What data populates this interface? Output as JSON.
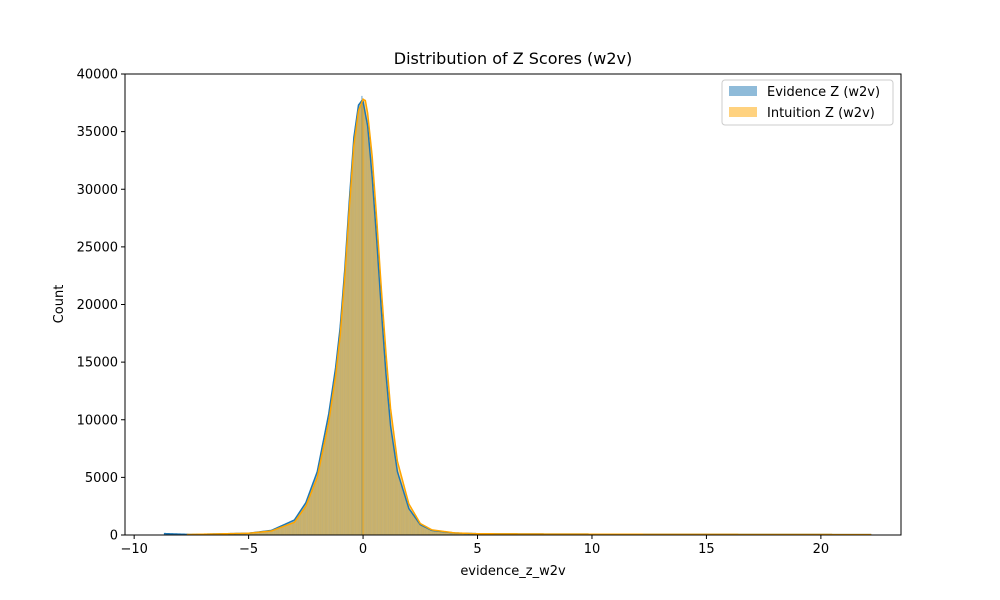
{
  "chart_data": {
    "type": "histogram",
    "title": "Distribution of Z Scores (w2v)",
    "xlabel": "evidence_z_w2v",
    "ylabel": "Count",
    "xlim": [
      -10.4,
      23.5
    ],
    "ylim": [
      0,
      40000
    ],
    "xticks": [
      -10,
      -5,
      0,
      5,
      10,
      15,
      20
    ],
    "xtick_labels": [
      "−10",
      "−5",
      "0",
      "5",
      "10",
      "15",
      "20"
    ],
    "yticks": [
      0,
      5000,
      10000,
      15000,
      20000,
      25000,
      30000,
      35000,
      40000
    ],
    "ytick_labels": [
      "0",
      "5000",
      "10000",
      "15000",
      "20000",
      "25000",
      "30000",
      "35000",
      "40000"
    ],
    "grid": false,
    "legend_position": "top-right",
    "series": [
      {
        "name": "Evidence Z (w2v)",
        "color": "#1f77b4",
        "x_range": [
          -8.7,
          22.2
        ],
        "peak": 38100,
        "curve_x": [
          -8.7,
          -7.5,
          -5.0,
          -4.0,
          -3.0,
          -2.5,
          -2.0,
          -1.5,
          -1.2,
          -1.0,
          -0.8,
          -0.6,
          -0.4,
          -0.2,
          -0.05,
          0.0,
          0.2,
          0.4,
          0.6,
          0.8,
          1.0,
          1.2,
          1.5,
          2.0,
          2.5,
          3.0,
          4.0,
          5.0,
          8.0,
          12.0,
          16.0,
          20.0,
          22.2
        ],
        "curve_y": [
          120,
          40,
          150,
          400,
          1300,
          2800,
          5500,
          10500,
          14500,
          18000,
          23000,
          29000,
          34500,
          37300,
          37700,
          37600,
          35500,
          31000,
          25500,
          19500,
          14000,
          9500,
          5500,
          2300,
          900,
          400,
          170,
          110,
          80,
          60,
          50,
          40,
          30
        ]
      },
      {
        "name": "Intuition Z (w2v)",
        "color": "#ffa500",
        "x_range": [
          -7.7,
          22.2
        ],
        "peak": 37900,
        "curve_x": [
          -7.7,
          -5.0,
          -4.0,
          -3.0,
          -2.5,
          -2.0,
          -1.5,
          -1.2,
          -1.0,
          -0.8,
          -0.6,
          -0.4,
          -0.2,
          0.0,
          0.1,
          0.2,
          0.4,
          0.6,
          0.8,
          1.0,
          1.2,
          1.5,
          2.0,
          2.5,
          3.0,
          4.0,
          5.0,
          8.0,
          12.0,
          16.0,
          20.0,
          22.2
        ],
        "curve_y": [
          40,
          150,
          350,
          1100,
          2500,
          5000,
          9800,
          13800,
          17300,
          22300,
          28300,
          33800,
          36800,
          37800,
          37700,
          36600,
          32800,
          27300,
          21300,
          15800,
          11000,
          6400,
          2700,
          1000,
          450,
          180,
          110,
          80,
          60,
          50,
          40,
          30
        ]
      }
    ]
  }
}
